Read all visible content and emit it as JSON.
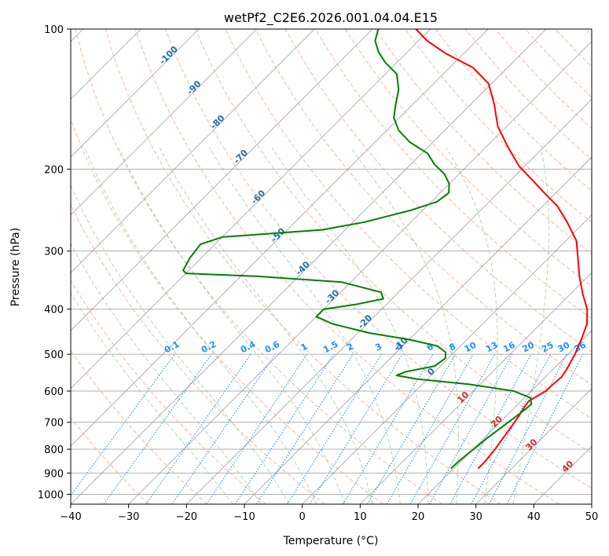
{
  "chart_data": {
    "type": "line",
    "title": "wetPf2_C2E6.2026.001.04.04.E15",
    "xlabel": "Temperature (°C)",
    "ylabel": "Pressure (hPa)",
    "x_scale": "linear",
    "y_scale": "log",
    "y_inverted": true,
    "xlim": [
      -40,
      50
    ],
    "ylim": [
      1050,
      100
    ],
    "x_ticks": [
      -40,
      -30,
      -20,
      -10,
      0,
      10,
      20,
      30,
      40,
      50
    ],
    "y_ticks": [
      100,
      200,
      300,
      400,
      500,
      600,
      700,
      800,
      900,
      1000
    ],
    "grid": true,
    "skew_degrees": 45,
    "series": [
      {
        "color": "#ff0000",
        "points": [
          [
            24.2,
            880
          ],
          [
            24.2,
            850
          ],
          [
            23.8,
            800
          ],
          [
            23.3,
            760
          ],
          [
            22.8,
            720
          ],
          [
            22.2,
            680
          ],
          [
            21.6,
            650
          ],
          [
            21.3,
            630
          ],
          [
            22.5,
            600
          ],
          [
            22.6,
            580
          ],
          [
            22.8,
            560
          ],
          [
            22.4,
            540
          ],
          [
            21.2,
            500
          ],
          [
            19.5,
            460
          ],
          [
            18.0,
            430
          ],
          [
            15.5,
            400
          ],
          [
            12.0,
            370
          ],
          [
            8.5,
            340
          ],
          [
            5.0,
            310
          ],
          [
            1.8,
            285
          ],
          [
            -3.0,
            260
          ],
          [
            -7.5,
            240
          ],
          [
            -12.0,
            225
          ],
          [
            -16.0,
            212
          ],
          [
            -21.0,
            197
          ],
          [
            -26.0,
            180
          ],
          [
            -31.5,
            162
          ],
          [
            -36.0,
            145
          ],
          [
            -40.5,
            131
          ],
          [
            -46.0,
            121
          ],
          [
            -53.0,
            113
          ],
          [
            -58.5,
            106
          ],
          [
            -62.5,
            100
          ]
        ]
      },
      {
        "color": "#008000",
        "points": [
          [
            19.5,
            880
          ],
          [
            19.6,
            850
          ],
          [
            20.1,
            800
          ],
          [
            20.5,
            760
          ],
          [
            21.1,
            720
          ],
          [
            21.6,
            690
          ],
          [
            22.1,
            660
          ],
          [
            22.3,
            640
          ],
          [
            21.0,
            620
          ],
          [
            17.0,
            600
          ],
          [
            8.0,
            580
          ],
          [
            -2.0,
            565
          ],
          [
            -6.0,
            555
          ],
          [
            -5.0,
            545
          ],
          [
            -1.0,
            530
          ],
          [
            -0.5,
            510
          ],
          [
            -1.5,
            495
          ],
          [
            -4.0,
            480
          ],
          [
            -10.0,
            465
          ],
          [
            -18.0,
            450
          ],
          [
            -26.0,
            430
          ],
          [
            -30.0,
            415
          ],
          [
            -30.0,
            400
          ],
          [
            -25.0,
            390
          ],
          [
            -21.5,
            380
          ],
          [
            -23.0,
            368
          ],
          [
            -31.5,
            350
          ],
          [
            -47.0,
            340
          ],
          [
            -60.0,
            335
          ],
          [
            -61.0,
            330
          ],
          [
            -62.0,
            310
          ],
          [
            -62.5,
            290
          ],
          [
            -60.0,
            280
          ],
          [
            -52.0,
            275
          ],
          [
            -44.0,
            270
          ],
          [
            -38.0,
            260
          ],
          [
            -32.0,
            245
          ],
          [
            -29.0,
            235
          ],
          [
            -28.5,
            225
          ],
          [
            -30.0,
            215
          ],
          [
            -32.5,
            205
          ],
          [
            -36.0,
            195
          ],
          [
            -39.0,
            185
          ],
          [
            -44.0,
            175
          ],
          [
            -48.0,
            165
          ],
          [
            -51.0,
            155
          ],
          [
            -53.0,
            145
          ],
          [
            -55.0,
            135
          ],
          [
            -58.0,
            125
          ],
          [
            -62.0,
            118
          ],
          [
            -65.0,
            112
          ],
          [
            -67.5,
            106
          ],
          [
            -69.0,
            100
          ]
        ]
      }
    ],
    "dry_adiabat_labels": [
      "-100",
      "-90",
      "-80",
      "-70",
      "-60",
      "-50",
      "-40",
      "-30",
      "-20",
      "-10",
      "0",
      "10",
      "20",
      "30",
      "40"
    ],
    "mixing_ratio_labels": [
      "0.1",
      "0.2",
      "0.4",
      "0.6",
      "1",
      "1.5",
      "2",
      "3",
      "4",
      "6",
      "8",
      "10",
      "13",
      "16",
      "20",
      "25",
      "30",
      "36"
    ],
    "colors": {
      "isotherm": "#808080",
      "grid": "#b0b0b0",
      "dry_adiabat": "#f4a582",
      "moist_adiabat": "#8fc78f",
      "mixing_ratio": "#1e90ff",
      "adiabat_label": "#1f6fa8",
      "warm_label": "#d62728"
    }
  }
}
